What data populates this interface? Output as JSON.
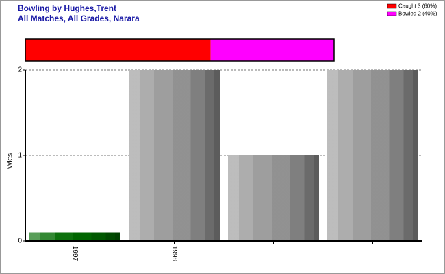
{
  "chart_data": [
    {
      "type": "proportion-bar",
      "series": [
        {
          "name": "Caught 3 (60%)",
          "color": "#ff0000",
          "values": [
            60
          ]
        },
        {
          "name": "Bowled 2 (40%)",
          "color": "#ff00ff",
          "values": [
            40
          ]
        }
      ]
    },
    {
      "type": "bar",
      "title": "Bowling by Hughes,Trent",
      "subtitle": "All Matches, All Grades, Narara",
      "y_label": "Wkts",
      "categories": [
        "1997",
        "1998",
        null,
        null
      ],
      "values": [
        0.1,
        2,
        1,
        2
      ],
      "colors": [
        "#006a00",
        "#999999",
        "#999999",
        "#999999"
      ],
      "ylim": [
        0,
        2
      ],
      "yticks": [
        0,
        1,
        2
      ],
      "grid": true
    }
  ]
}
